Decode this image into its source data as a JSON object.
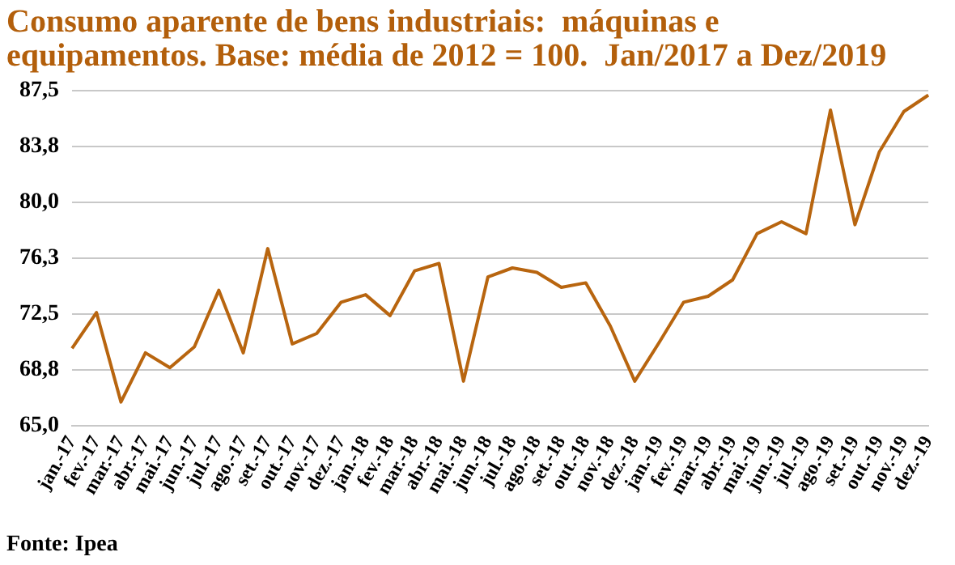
{
  "chart_data": {
    "type": "line",
    "title": "Consumo aparente de bens industriais:  máquinas e equipamentos. Base: média de 2012 = 100.  Jan/2017 a Dez/2019",
    "categories": [
      "jan.-17",
      "fev.-17",
      "mar.-17",
      "abr.-17",
      "mai.-17",
      "jun.-17",
      "jul.-17",
      "ago.-17",
      "set.-17",
      "out.-17",
      "nov.-17",
      "dez.-17",
      "jan.-18",
      "fev.-18",
      "mar.-18",
      "abr.-18",
      "mai.-18",
      "jun.-18",
      "jul.-18",
      "ago.-18",
      "set.-18",
      "out.-18",
      "nov.-18",
      "dez.-18",
      "jan.-19",
      "fev.-19",
      "mar.-19",
      "abr.-19",
      "mai.-19",
      "jun.-19",
      "jul.-19",
      "ago.-19",
      "set.-19",
      "out.-19",
      "nov.-19",
      "dez.-19"
    ],
    "series": [
      {
        "color": "#b8650f",
        "values": [
          70.2,
          72.6,
          66.6,
          69.9,
          68.9,
          70.3,
          74.1,
          69.9,
          76.9,
          70.5,
          71.2,
          73.3,
          73.8,
          72.4,
          75.4,
          75.9,
          68.0,
          75.0,
          75.6,
          75.3,
          74.3,
          74.6,
          71.7,
          68.0,
          70.6,
          73.3,
          73.7,
          74.8,
          77.9,
          78.7,
          77.9,
          86.2,
          78.5,
          83.4,
          86.1,
          87.2
        ]
      }
    ],
    "ylim": [
      65,
      87.5
    ],
    "yticks": [
      {
        "value": 65,
        "label": "65,0"
      },
      {
        "value": 68.75,
        "label": "68,8"
      },
      {
        "value": 72.5,
        "label": "72,5"
      },
      {
        "value": 76.25,
        "label": "76,3"
      },
      {
        "value": 80,
        "label": "80,0"
      },
      {
        "value": 83.75,
        "label": "83,8"
      },
      {
        "value": 87.5,
        "label": "87,5"
      }
    ],
    "grid": "y",
    "legend": false,
    "marker": "none",
    "line_style": "solid",
    "annotations": [
      "Fonte: Ipea"
    ]
  }
}
